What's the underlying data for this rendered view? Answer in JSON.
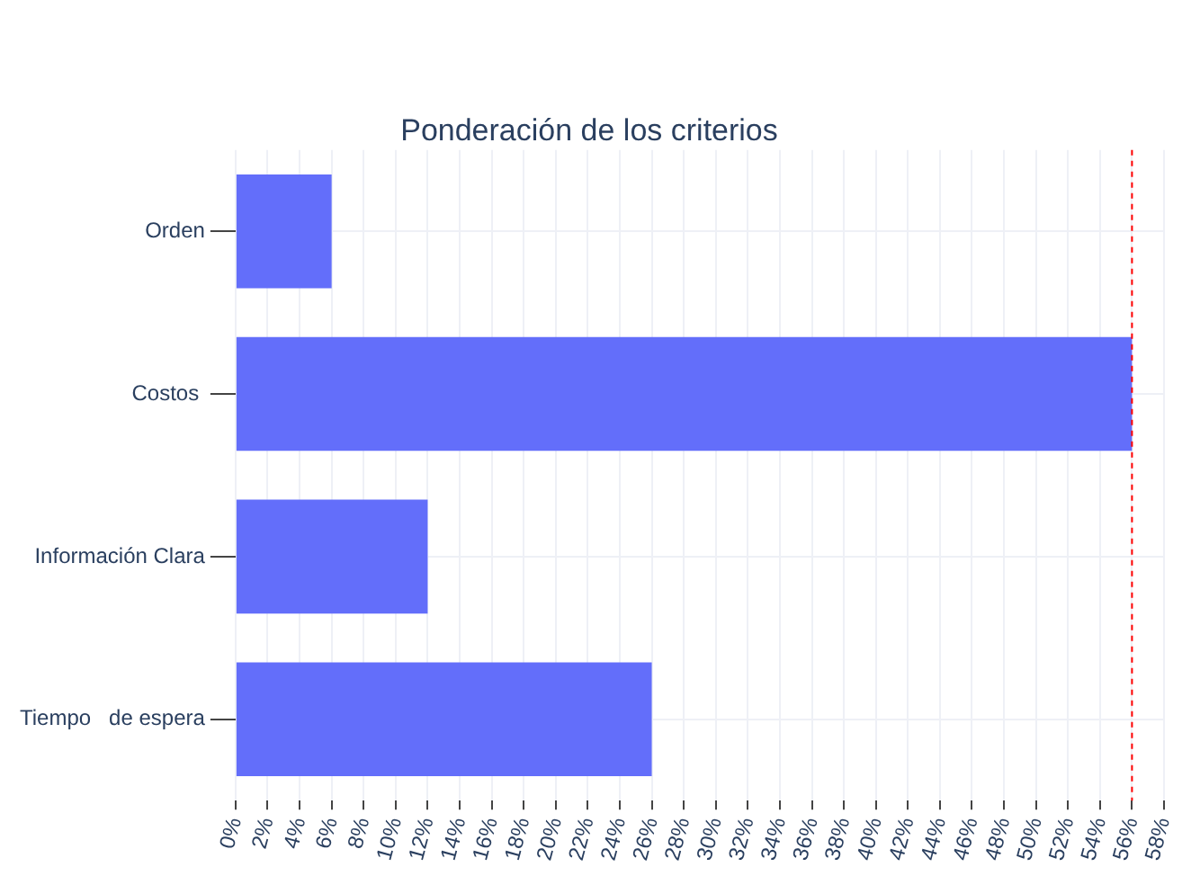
{
  "chart_data": {
    "type": "bar",
    "orientation": "horizontal",
    "title": "Ponderación de los criterios",
    "categories": [
      "Orden",
      "Costos ",
      "Información Clara",
      "Tiempo   de espera"
    ],
    "values": [
      6,
      56,
      12,
      26
    ],
    "color": "#636efa",
    "xlim": [
      0,
      58
    ],
    "xticks": [
      {
        "value": 0,
        "label": "0%"
      },
      {
        "value": 2,
        "label": "2%"
      },
      {
        "value": 4,
        "label": "4%"
      },
      {
        "value": 6,
        "label": "6%"
      },
      {
        "value": 8,
        "label": "8%"
      },
      {
        "value": 10,
        "label": "10%"
      },
      {
        "value": 12,
        "label": "12%"
      },
      {
        "value": 14,
        "label": "14%"
      },
      {
        "value": 16,
        "label": "16%"
      },
      {
        "value": 18,
        "label": "18%"
      },
      {
        "value": 20,
        "label": "20%"
      },
      {
        "value": 22,
        "label": "22%"
      },
      {
        "value": 24,
        "label": "24%"
      },
      {
        "value": 26,
        "label": "26%"
      },
      {
        "value": 28,
        "label": "28%"
      },
      {
        "value": 30,
        "label": "30%"
      },
      {
        "value": 32,
        "label": "32%"
      },
      {
        "value": 34,
        "label": "34%"
      },
      {
        "value": 36,
        "label": "36%"
      },
      {
        "value": 38,
        "label": "38%"
      },
      {
        "value": 40,
        "label": "40%"
      },
      {
        "value": 42,
        "label": "42%"
      },
      {
        "value": 44,
        "label": "44%"
      },
      {
        "value": 46,
        "label": "46%"
      },
      {
        "value": 48,
        "label": "48%"
      },
      {
        "value": 50,
        "label": "50%"
      },
      {
        "value": 52,
        "label": "52%"
      },
      {
        "value": 54,
        "label": "54%"
      },
      {
        "value": 56,
        "label": "56%"
      },
      {
        "value": 58,
        "label": "58%"
      }
    ],
    "ref_lines": [
      {
        "axis": "x",
        "value": 56,
        "color": "#ff0000",
        "line_style": "dashed"
      }
    ],
    "grid": true
  }
}
